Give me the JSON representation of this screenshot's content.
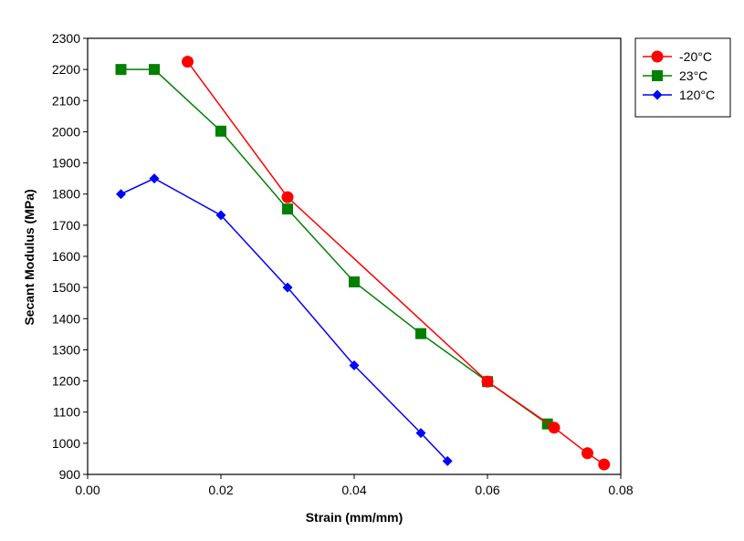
{
  "chart_data": {
    "type": "line",
    "title": "",
    "xlabel": "Strain (mm/mm)",
    "ylabel": "Secant Modulus (MPa)",
    "xlim": [
      0,
      0.08
    ],
    "ylim": [
      900,
      2300
    ],
    "x_ticks": [
      0,
      0.02,
      0.04,
      0.06,
      0.08
    ],
    "x_tick_labels": [
      "0.00",
      "0.02",
      "0.04",
      "0.06",
      "0.08"
    ],
    "y_ticks": [
      900,
      1000,
      1100,
      1200,
      1300,
      1400,
      1500,
      1600,
      1700,
      1800,
      1900,
      2000,
      2100,
      2200,
      2300
    ],
    "y_tick_labels": [
      "900",
      "1000",
      "1100",
      "1200",
      "1300",
      "1400",
      "1500",
      "1600",
      "1700",
      "1800",
      "1900",
      "2000",
      "2100",
      "2200",
      "2300"
    ],
    "grid": true,
    "legend_position": "top-right, outside plot",
    "series": [
      {
        "name": "-20°C",
        "color": "#ff0000",
        "marker": "circle",
        "x": [
          0.015,
          0.03,
          0.06,
          0.07,
          0.075,
          0.0775
        ],
        "y": [
          2225,
          1790,
          1198,
          1050,
          968,
          932
        ]
      },
      {
        "name": "23°C",
        "color": "#008000",
        "marker": "square",
        "x": [
          0.005,
          0.01,
          0.02,
          0.03,
          0.04,
          0.05,
          0.06,
          0.069
        ],
        "y": [
          2200,
          2200,
          2002,
          1752,
          1518,
          1352,
          1198,
          1062
        ]
      },
      {
        "name": "120°C",
        "color": "#0000ff",
        "marker": "diamond",
        "x": [
          0.005,
          0.01,
          0.02,
          0.03,
          0.04,
          0.05,
          0.054
        ],
        "y": [
          1800,
          1850,
          1732,
          1500,
          1250,
          1033,
          943
        ]
      }
    ]
  }
}
